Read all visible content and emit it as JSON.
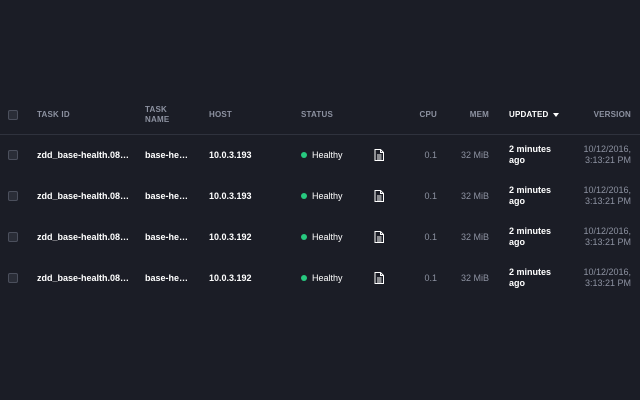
{
  "colors": {
    "background": "#1b1d26",
    "header_text": "#8d92a1",
    "text_strong": "#ffffff",
    "healthy": "#27c97f"
  },
  "table": {
    "headers": {
      "task_id": "TASK ID",
      "task_name_line1": "TASK",
      "task_name_line2": "NAME",
      "host": "HOST",
      "status": "STATUS",
      "cpu": "CPU",
      "mem": "MEM",
      "updated": "UPDATED",
      "version": "VERSION"
    },
    "sorted_by": "updated",
    "sort_direction": "descending",
    "rows": [
      {
        "task_id": "zdd_base-health.08…",
        "task_name": "base-he…",
        "host": "10.0.3.193",
        "status": "Healthy",
        "log_icon": "document-icon",
        "cpu": "0.1",
        "mem": "32 MiB",
        "updated_line1": "2 minutes",
        "updated_line2": "ago",
        "version_line1": "10/12/2016,",
        "version_line2": "3:13:21 PM"
      },
      {
        "task_id": "zdd_base-health.08…",
        "task_name": "base-he…",
        "host": "10.0.3.193",
        "status": "Healthy",
        "log_icon": "document-icon",
        "cpu": "0.1",
        "mem": "32 MiB",
        "updated_line1": "2 minutes",
        "updated_line2": "ago",
        "version_line1": "10/12/2016,",
        "version_line2": "3:13:21 PM"
      },
      {
        "task_id": "zdd_base-health.08…",
        "task_name": "base-he…",
        "host": "10.0.3.192",
        "status": "Healthy",
        "log_icon": "document-icon",
        "cpu": "0.1",
        "mem": "32 MiB",
        "updated_line1": "2 minutes",
        "updated_line2": "ago",
        "version_line1": "10/12/2016,",
        "version_line2": "3:13:21 PM"
      },
      {
        "task_id": "zdd_base-health.08…",
        "task_name": "base-he…",
        "host": "10.0.3.192",
        "status": "Healthy",
        "log_icon": "document-icon",
        "cpu": "0.1",
        "mem": "32 MiB",
        "updated_line1": "2 minutes",
        "updated_line2": "ago",
        "version_line1": "10/12/2016,",
        "version_line2": "3:13:21 PM"
      }
    ]
  }
}
